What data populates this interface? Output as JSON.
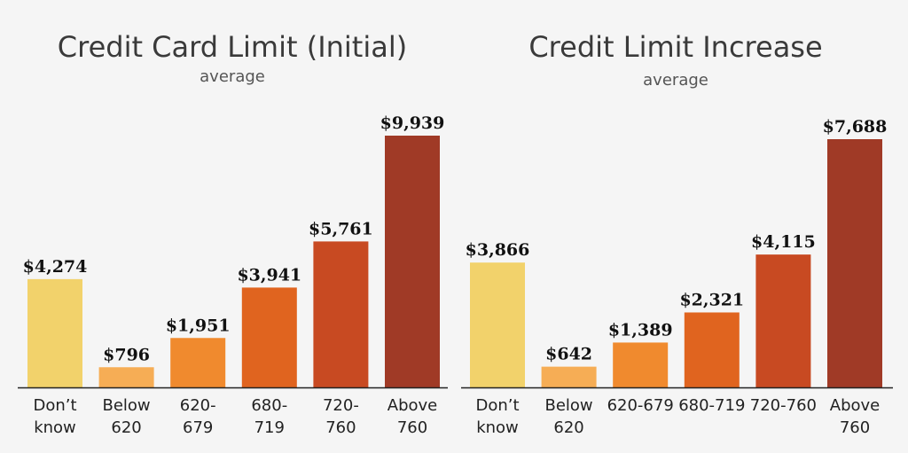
{
  "chart_data": [
    {
      "type": "bar",
      "title": "Credit Card Limit (Initial)",
      "subtitle": "average",
      "categories": [
        [
          "Don’t",
          "know"
        ],
        [
          "Below",
          "620"
        ],
        [
          "620-",
          "679"
        ],
        [
          "680-",
          "719"
        ],
        [
          "720-",
          "760"
        ],
        [
          "Above",
          "760"
        ]
      ],
      "values": [
        4274,
        796,
        1951,
        3941,
        5761,
        9939
      ],
      "value_labels": [
        "$4,274",
        "$796",
        "$1,951",
        "$3,941",
        "$5,761",
        "$9,939"
      ],
      "colors": [
        "#f2d26b",
        "#f6ad55",
        "#f08a2e",
        "#e0641f",
        "#c84a22",
        "#a03a26"
      ],
      "ylim": [
        0,
        9939
      ]
    },
    {
      "type": "bar",
      "title": "Credit Limit Increase",
      "subtitle": "average",
      "categories": [
        [
          "Don’t",
          "know"
        ],
        [
          "Below",
          "620"
        ],
        [
          "620-679"
        ],
        [
          "680-719"
        ],
        [
          "720-760"
        ],
        [
          "Above",
          "760"
        ]
      ],
      "values": [
        3866,
        642,
        1389,
        2321,
        4115,
        7688
      ],
      "value_labels": [
        "$3,866",
        "$642",
        "$1,389",
        "$2,321",
        "$4,115",
        "$7,688"
      ],
      "colors": [
        "#f2d26b",
        "#f6ad55",
        "#f08a2e",
        "#e0641f",
        "#c84a22",
        "#a03a26"
      ],
      "ylim": [
        0,
        7688
      ]
    }
  ]
}
